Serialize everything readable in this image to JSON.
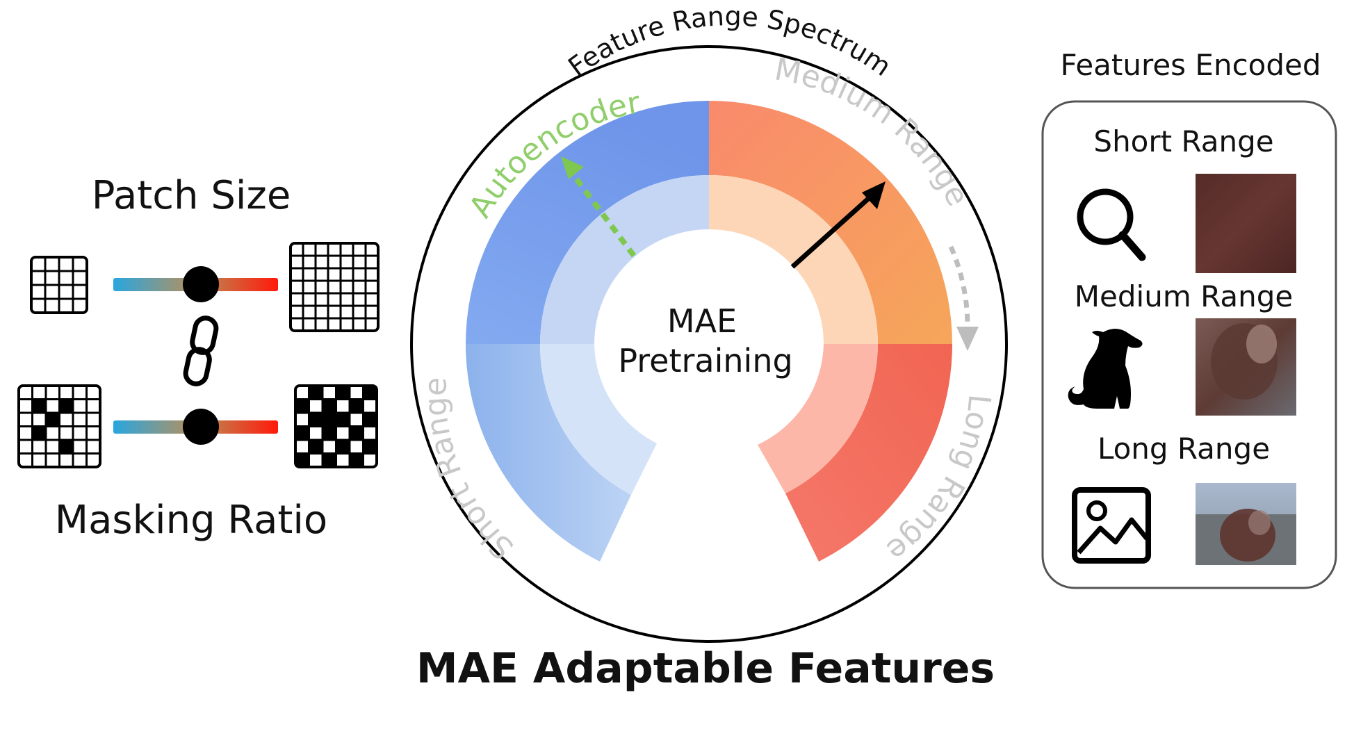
{
  "left_panel": {
    "patch_size_label": "Patch Size",
    "masking_ratio_label": "Masking Ratio",
    "link_icon": "link-icon",
    "slider_gradient": [
      "#29a6df",
      "#ff0000"
    ]
  },
  "center": {
    "arc_title": "Feature Range Spectrum",
    "core_label_line1": "MAE",
    "core_label_line2": "Pretraining",
    "segments": {
      "autoencoder": "Autoencoder",
      "medium_range": "Medium Range",
      "short_range": "Short Range",
      "long_range": "Long Range"
    },
    "bottom_title": "MAE Adaptable Features",
    "colors": {
      "blue": "#6f95ea",
      "orange": "#f7a25e",
      "red": "#f0634f",
      "autoencoder_label": "#8fce6a",
      "faded_label": "#c8c8c8"
    }
  },
  "right_panel": {
    "title": "Features Encoded",
    "rows": [
      {
        "label": "Short Range",
        "icon": "magnifier-icon"
      },
      {
        "label": "Medium Range",
        "icon": "dog-icon"
      },
      {
        "label": "Long Range",
        "icon": "image-icon"
      }
    ]
  }
}
